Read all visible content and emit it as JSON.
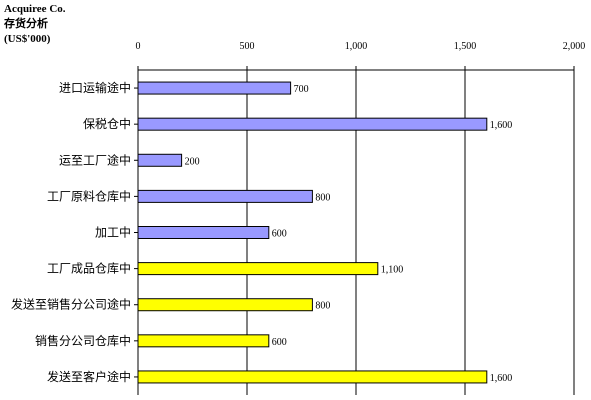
{
  "corner": {
    "company": "Acquiree Co.",
    "title": "存货分析",
    "unit": "(US$'000)"
  },
  "chart_data": {
    "type": "bar",
    "orientation": "horizontal",
    "categories": [
      "进口运输途中",
      "保税仓中",
      "运至工厂途中",
      "工厂原料仓库中",
      "加工中",
      "工厂成品仓库中",
      "发送至销售分公司途中",
      "销售分公司仓库中",
      "发送至客户途中"
    ],
    "values": [
      700,
      1600,
      200,
      800,
      600,
      1100,
      800,
      600,
      1600
    ],
    "value_labels": [
      "700",
      "1,600",
      "200",
      "800",
      "600",
      "1,100",
      "800",
      "600",
      "1,600"
    ],
    "bar_colors": [
      "#9999ff",
      "#9999ff",
      "#9999ff",
      "#9999ff",
      "#9999ff",
      "#ffff00",
      "#ffff00",
      "#ffff00",
      "#ffff00"
    ],
    "xlim": [
      0,
      2000
    ],
    "x_ticks": [
      0,
      500,
      1000,
      1500,
      2000
    ],
    "x_tick_labels": [
      "0",
      "500",
      "1,000",
      "1,500",
      "2,000"
    ],
    "x_axis_position": "top",
    "grid": true
  }
}
